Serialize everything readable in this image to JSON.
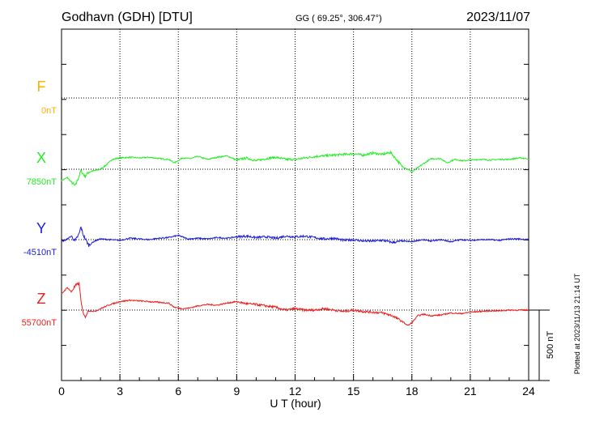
{
  "header": {
    "station": "Godhavn (GDH)  [DTU]",
    "coords": "GG ( 69.25°, 306.47°)",
    "date": "2023/11/07"
  },
  "footer_note": "Plotted at 2023/11/13 21:14 UT",
  "scale_bar_label": "500 nT",
  "colors": {
    "F": "#ffb000",
    "X": "#22ee22",
    "Y": "#1a1adb",
    "Z": "#ee1c1c",
    "axis": "#000000",
    "grid": "#000000"
  },
  "chart_data": {
    "type": "line",
    "xlabel": "U T (hour)",
    "xlim": [
      0,
      24
    ],
    "xticks": [
      "0",
      "3",
      "6",
      "9",
      "12",
      "15",
      "18",
      "21",
      "24"
    ],
    "scale_nT": 500,
    "components": [
      {
        "name": "F",
        "baseline_label": "0nT",
        "has_data": false
      },
      {
        "name": "X",
        "baseline_label": "7850nT",
        "has_data": true
      },
      {
        "name": "Y",
        "baseline_label": "-4510nT",
        "has_data": true
      },
      {
        "name": "Z",
        "baseline_label": "55700nT",
        "has_data": true
      }
    ],
    "series": [
      {
        "name": "X",
        "x": [
          0,
          0.3,
          0.5,
          0.7,
          0.9,
          1.0,
          1.2,
          1.4,
          1.7,
          2.0,
          2.3,
          2.6,
          3.0,
          3.5,
          4.0,
          4.5,
          5.0,
          5.5,
          5.8,
          6.2,
          6.6,
          7.0,
          7.5,
          8.0,
          8.5,
          9.0,
          9.5,
          10.0,
          10.5,
          11.0,
          11.5,
          12.0,
          12.5,
          13.0,
          13.5,
          14.0,
          14.5,
          15.0,
          15.5,
          16.0,
          16.5,
          16.9,
          17.2,
          17.5,
          17.8,
          18.0,
          18.3,
          18.6,
          19.0,
          19.5,
          19.8,
          20.2,
          20.6,
          21.0,
          21.5,
          22.0,
          22.5,
          23.0,
          23.5,
          24.0
        ],
        "values": [
          7770,
          7790,
          7760,
          7730,
          7800,
          7840,
          7800,
          7830,
          7840,
          7850,
          7880,
          7920,
          7930,
          7935,
          7930,
          7935,
          7925,
          7920,
          7895,
          7930,
          7925,
          7940,
          7920,
          7935,
          7945,
          7915,
          7930,
          7910,
          7925,
          7935,
          7920,
          7920,
          7930,
          7940,
          7945,
          7950,
          7955,
          7960,
          7950,
          7965,
          7955,
          7970,
          7920,
          7870,
          7850,
          7830,
          7860,
          7890,
          7925,
          7925,
          7895,
          7920,
          7910,
          7915,
          7920,
          7915,
          7920,
          7920,
          7930,
          7925
        ]
      },
      {
        "name": "Y",
        "x": [
          0,
          0.3,
          0.5,
          0.7,
          0.9,
          1.0,
          1.1,
          1.2,
          1.4,
          1.7,
          2.0,
          2.5,
          3.0,
          3.5,
          4.0,
          4.5,
          5.0,
          5.5,
          6.0,
          6.5,
          7.0,
          7.5,
          8.0,
          8.5,
          9.0,
          9.5,
          10.0,
          10.5,
          11.0,
          11.5,
          12.0,
          12.5,
          13.0,
          13.5,
          14.0,
          14.5,
          15.0,
          15.5,
          16.0,
          16.5,
          17.0,
          17.5,
          18.0,
          18.5,
          19.0,
          19.5,
          20.0,
          20.5,
          21.0,
          21.5,
          22.0,
          22.5,
          23.0,
          23.5,
          24.0
        ],
        "values": [
          -4525,
          -4505,
          -4485,
          -4520,
          -4470,
          -4420,
          -4470,
          -4500,
          -4550,
          -4520,
          -4505,
          -4510,
          -4515,
          -4500,
          -4505,
          -4510,
          -4500,
          -4495,
          -4480,
          -4505,
          -4500,
          -4505,
          -4495,
          -4500,
          -4490,
          -4485,
          -4495,
          -4490,
          -4500,
          -4485,
          -4490,
          -4485,
          -4495,
          -4505,
          -4500,
          -4515,
          -4510,
          -4520,
          -4520,
          -4515,
          -4530,
          -4520,
          -4525,
          -4510,
          -4520,
          -4510,
          -4525,
          -4510,
          -4515,
          -4510,
          -4510,
          -4515,
          -4505,
          -4505,
          -4510
        ]
      },
      {
        "name": "Z",
        "x": [
          0,
          0.3,
          0.5,
          0.7,
          0.9,
          1.0,
          1.1,
          1.2,
          1.4,
          1.7,
          2.0,
          2.5,
          3.0,
          3.5,
          4.0,
          4.5,
          5.0,
          5.5,
          5.8,
          6.2,
          6.6,
          7.0,
          7.5,
          8.0,
          8.5,
          9.0,
          9.5,
          10.0,
          10.5,
          11.0,
          11.5,
          12.0,
          12.5,
          13.0,
          13.5,
          14.0,
          14.5,
          15.0,
          15.5,
          16.0,
          16.5,
          17.0,
          17.5,
          17.8,
          18.0,
          18.3,
          18.6,
          19.0,
          19.5,
          20.0,
          20.5,
          21.0,
          21.5,
          22.0,
          22.5,
          23.0,
          23.5,
          24.0
        ],
        "values": [
          55815,
          55860,
          55830,
          55870,
          55890,
          55770,
          55680,
          55650,
          55700,
          55690,
          55710,
          55740,
          55760,
          55770,
          55765,
          55760,
          55755,
          55750,
          55720,
          55710,
          55715,
          55730,
          55740,
          55735,
          55750,
          55760,
          55745,
          55740,
          55730,
          55720,
          55700,
          55710,
          55700,
          55700,
          55710,
          55700,
          55690,
          55700,
          55690,
          55685,
          55680,
          55660,
          55620,
          55590,
          55610,
          55660,
          55670,
          55660,
          55665,
          55680,
          55675,
          55685,
          55690,
          55695,
          55695,
          55700,
          55700,
          55700
        ]
      }
    ]
  }
}
